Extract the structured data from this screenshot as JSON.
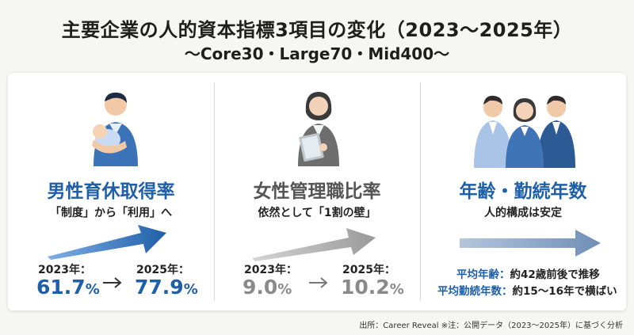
{
  "header": {
    "title": "主要企業の人的資本指標3項目の変化（2023〜2025年）",
    "subtitle": "〜Core30・Large70・Mid400〜"
  },
  "panels": [
    {
      "title": "男性育休取得率",
      "subtitle": "「制度」から「利用」へ",
      "from_label": "2023年：",
      "from_value": "61.7",
      "to_label": "2025年：",
      "to_value": "77.9",
      "unit": "%",
      "color": "#1f5fa8",
      "illustration": "father-holding-baby-icon"
    },
    {
      "title": "女性管理職比率",
      "subtitle": "依然として「1割の壁」",
      "from_label": "2023年：",
      "from_value": "9.0",
      "to_label": "2025年：",
      "to_value": "10.2",
      "unit": "%",
      "color": "#8a8a8a",
      "illustration": "businesswoman-with-tablet-icon"
    },
    {
      "title": "年齢・勤続年数",
      "subtitle": "人的構成は安定",
      "stats": [
        {
          "key": "平均年齢：",
          "value": "約42歳前後で推移"
        },
        {
          "key": "平均勤続年数：",
          "value": "約15〜16年で横ばい"
        }
      ],
      "color": "#1f5fa8",
      "illustration": "business-team-icon"
    }
  ],
  "footer": {
    "source": "出所：Career Reveal ※注：公開データ（2023〜2025年）に基づく分析"
  }
}
